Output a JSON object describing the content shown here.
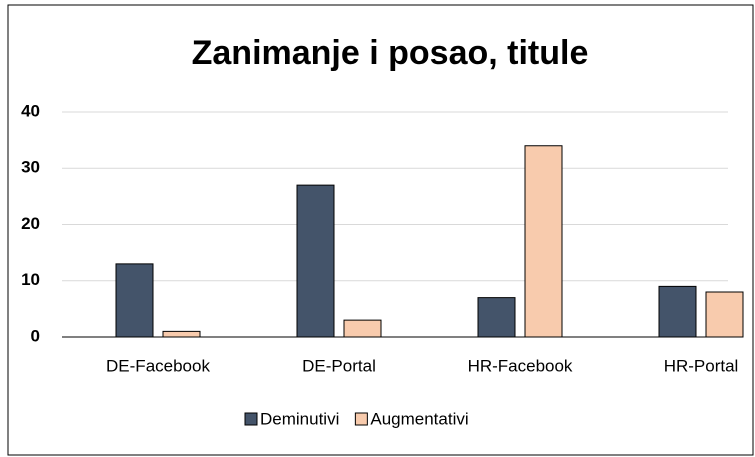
{
  "chart_data": {
    "type": "bar",
    "title": "Zanimanje i posao, titule",
    "categories": [
      "DE-Facebook",
      "DE-Portal",
      "HR-Facebook",
      "HR-Portal"
    ],
    "series": [
      {
        "name": "Deminutivi",
        "color": "#44546a",
        "values": [
          13,
          27,
          7,
          9
        ]
      },
      {
        "name": "Augmentativi",
        "color": "#f8cbad",
        "values": [
          1,
          3,
          34,
          8
        ]
      }
    ],
    "ylim": [
      0,
      40
    ],
    "yticks": [
      0,
      10,
      20,
      30,
      40
    ],
    "grid": true,
    "legend": "bottom"
  }
}
